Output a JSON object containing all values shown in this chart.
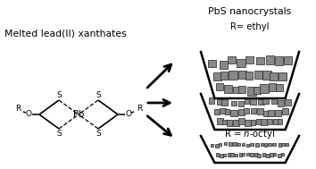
{
  "bg_color": "#ffffff",
  "text_color": "#000000",
  "title_text": "Melted lead(II) xanthates",
  "pbs_title": "PbS nanocrystals",
  "r_ethyl": "R= ethyl",
  "crystal_color": "#888888",
  "crystal_edge": "#222222",
  "arrow_color": "#000000",
  "figsize": [
    3.54,
    1.89
  ],
  "dpi": 100
}
